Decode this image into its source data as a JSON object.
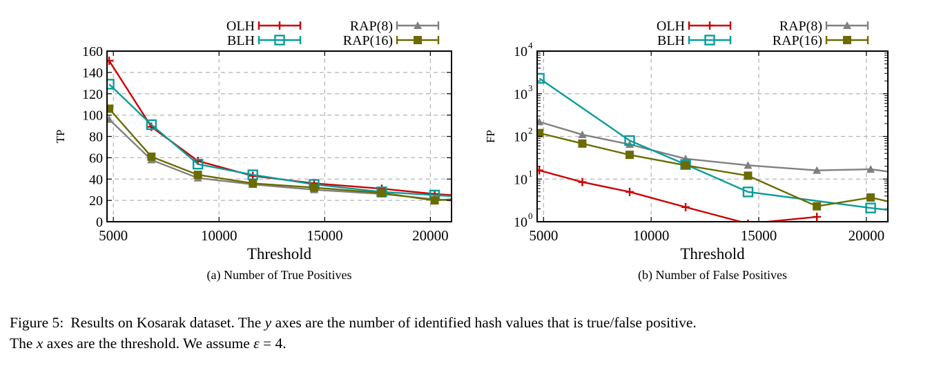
{
  "chart_data": [
    {
      "type": "line",
      "xlabel": "Threshold",
      "ylabel": "TP",
      "subcaption": "(a)  Number of True Positives",
      "xlim": [
        4700,
        21000
      ],
      "ylim": [
        0,
        160
      ],
      "yscale": "linear",
      "xticks": [
        5000,
        10000,
        15000,
        20000
      ],
      "yticks": [
        0,
        20,
        40,
        60,
        80,
        100,
        120,
        140,
        160
      ],
      "grid": true,
      "legend_position": "top",
      "series": [
        {
          "name": "OLH",
          "color": "#cc0000",
          "marker": "plus",
          "x": [
            4800,
            6800,
            9000,
            11600,
            14500,
            17700,
            20200,
            21000
          ],
          "y": [
            151,
            89,
            57,
            43,
            36,
            31,
            26,
            25
          ]
        },
        {
          "name": "RAP(8)",
          "color": "#808080",
          "marker": "triangle",
          "x": [
            4800,
            6800,
            9000,
            11600,
            14500,
            17700,
            20200,
            21000
          ],
          "y": [
            96,
            58,
            41,
            35,
            30,
            26,
            21,
            20
          ]
        },
        {
          "name": "BLH",
          "color": "#0a9b9b",
          "marker": "square-open",
          "x": [
            4800,
            6800,
            9000,
            11600,
            14500,
            17700,
            20200,
            21000
          ],
          "y": [
            129,
            91,
            54,
            44,
            35,
            28,
            25,
            24
          ]
        },
        {
          "name": "RAP(16)",
          "color": "#6b6b00",
          "marker": "square",
          "x": [
            4800,
            6800,
            9000,
            11600,
            14500,
            17700,
            20200,
            21000
          ],
          "y": [
            106,
            61,
            44,
            36,
            32,
            27,
            20,
            21
          ]
        }
      ]
    },
    {
      "type": "line",
      "xlabel": "Threshold",
      "ylabel": "FP",
      "subcaption": "(b)  Number of False Positives",
      "xlim": [
        4700,
        21000
      ],
      "ylim": [
        1,
        10000
      ],
      "yscale": "log",
      "xticks": [
        5000,
        10000,
        15000,
        20000
      ],
      "yticks": [
        1,
        10,
        100,
        1000,
        10000
      ],
      "grid": true,
      "legend_position": "top",
      "series": [
        {
          "name": "OLH",
          "color": "#cc0000",
          "marker": "plus",
          "x": [
            4800,
            6800,
            9000,
            11600,
            14500,
            17700
          ],
          "y": [
            16,
            8.5,
            5,
            2.2,
            0.9,
            1.3
          ]
        },
        {
          "name": "RAP(8)",
          "color": "#808080",
          "marker": "triangle",
          "x": [
            4800,
            6800,
            9000,
            11600,
            14500,
            17700,
            20200,
            21000
          ],
          "y": [
            220,
            110,
            65,
            30,
            21,
            16,
            17,
            15
          ]
        },
        {
          "name": "BLH",
          "color": "#0a9b9b",
          "marker": "square-open",
          "x": [
            4800,
            9000,
            11600,
            14500,
            20200,
            21000
          ],
          "y": [
            2300,
            80,
            22,
            5,
            2.1,
            1.9
          ]
        },
        {
          "name": "RAP(16)",
          "color": "#6b6b00",
          "marker": "square",
          "x": [
            4800,
            6800,
            9000,
            11600,
            14500,
            17700,
            20200,
            21000
          ],
          "y": [
            120,
            68,
            37,
            21,
            12,
            2.3,
            3.7,
            3
          ]
        }
      ]
    }
  ],
  "caption": {
    "label": "Figure 5:",
    "line1_text": "Results on Kosarak dataset. The ",
    "line1_var": "y",
    "line1_rest": " axes are the number of identified hash values that is true/false positive.",
    "line2_start": "The ",
    "line2_var": "x",
    "line2_mid": " axes are the threshold. We assume ",
    "line2_eps": "ε",
    "line2_end": " = 4."
  }
}
